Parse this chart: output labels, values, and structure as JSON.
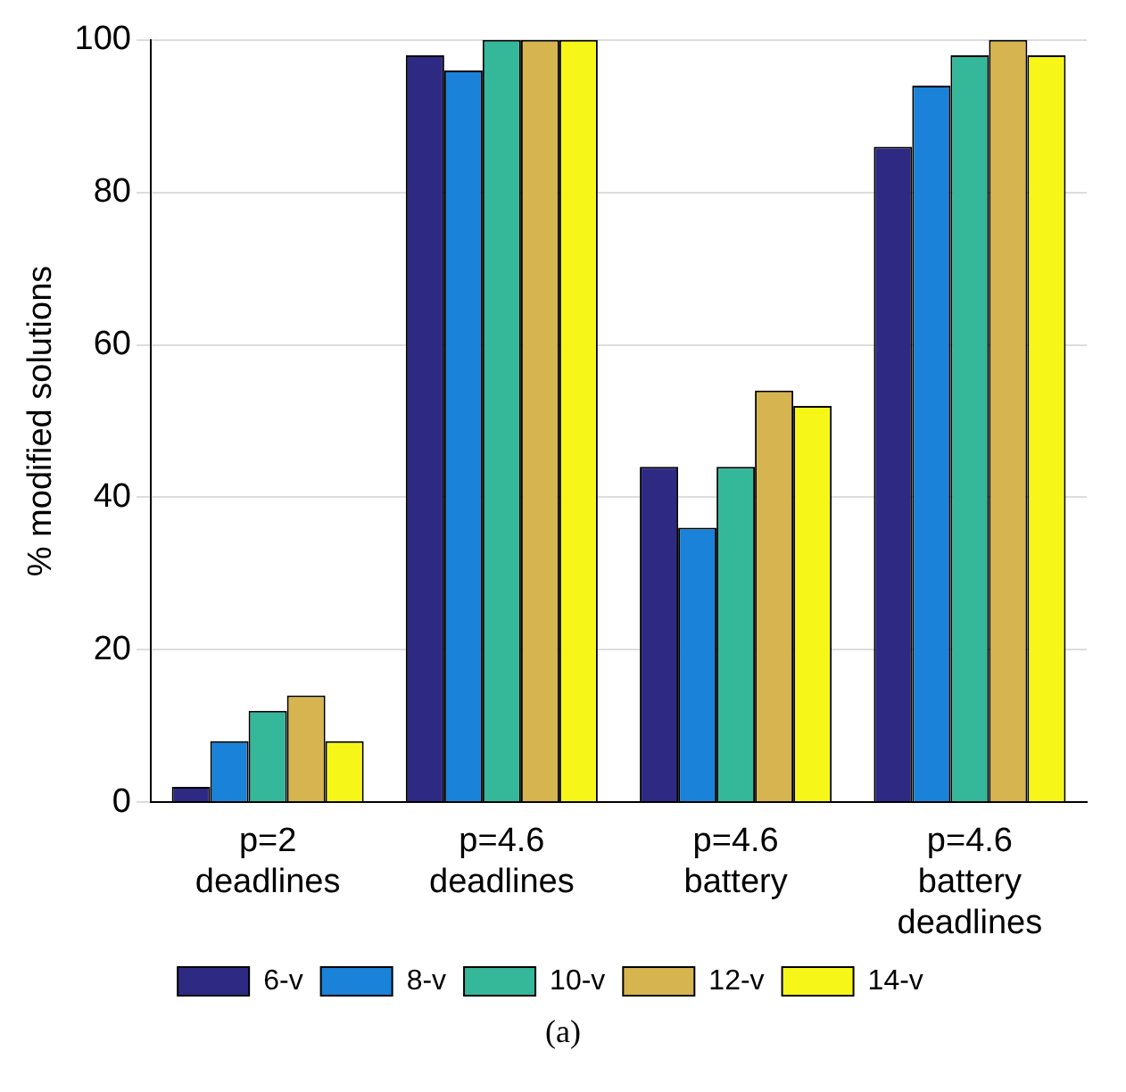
{
  "chart_data": {
    "type": "bar",
    "ylabel": "% modified solutions",
    "categories": [
      "p=2 deadlines",
      "p=4.6 deadlines",
      "p=4.6 battery",
      "p=4.6 battery deadlines"
    ],
    "series": [
      {
        "name": "6-v",
        "color": "#2e2a84",
        "values": [
          2,
          98,
          44,
          86
        ]
      },
      {
        "name": "8-v",
        "color": "#1a82d8",
        "values": [
          8,
          96,
          36,
          94
        ]
      },
      {
        "name": "10-v",
        "color": "#35b79a",
        "values": [
          12,
          100,
          44,
          98
        ]
      },
      {
        "name": "12-v",
        "color": "#d6b44f",
        "values": [
          14,
          100,
          54,
          100
        ]
      },
      {
        "name": "14-v",
        "color": "#f7f619",
        "values": [
          8,
          100,
          52,
          98
        ]
      }
    ],
    "ylim": [
      0,
      100
    ],
    "yticks": [
      0,
      20,
      40,
      60,
      80,
      100
    ],
    "grid": "y",
    "legend": "bottom",
    "annotations": [
      "(a)"
    ]
  }
}
